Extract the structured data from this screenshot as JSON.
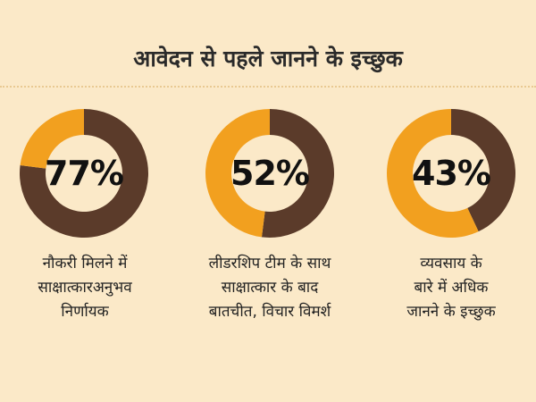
{
  "title": "आवेदन से पहले जानने के इच्छुक",
  "colors": {
    "accent": "#f2a01f",
    "dark": "#5b3b2a",
    "background": "#fbe9c8"
  },
  "chart_data": {
    "type": "pie",
    "title": "आवेदन से पहले जानने के इच्छुक",
    "items": [
      {
        "value": 77,
        "label_text": "77%",
        "caption": [
          "नौकरी मिलने में",
          "साक्षात्कारअनुभव",
          "निर्णायक"
        ]
      },
      {
        "value": 52,
        "label_text": "52%",
        "caption": [
          "लीडरशिप टीम के साथ",
          "साक्षात्कार के बाद",
          "बातचीत, विचार विमर्श"
        ]
      },
      {
        "value": 43,
        "label_text": "43%",
        "caption": [
          "व्यवसाय के",
          "बारे में अधिक",
          "जानने के इच्छुक"
        ]
      }
    ]
  }
}
